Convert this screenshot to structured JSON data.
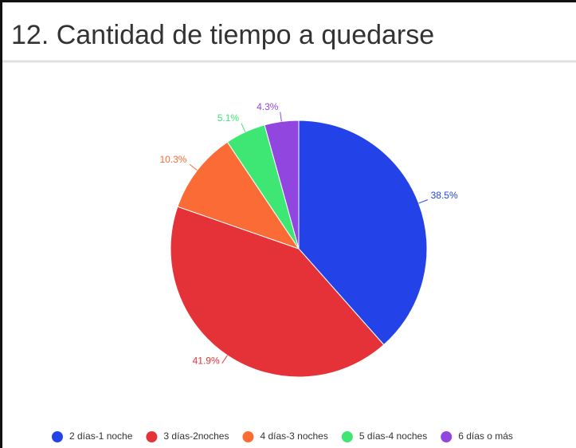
{
  "chart_data": {
    "type": "pie",
    "title": "12. Cantidad de tiempo a quedarse",
    "categories": [
      "2 días-1 noche",
      "3 días-2noches",
      "4 días-3 noches",
      "5 días-4 noches",
      "6 días o más"
    ],
    "values": [
      38.5,
      41.9,
      10.3,
      5.1,
      4.3
    ],
    "value_labels": [
      "38.5%",
      "41.9%",
      "10.3%",
      "5.1%",
      "4.3%"
    ],
    "colors": [
      "#2343e8",
      "#e53238",
      "#fb6b35",
      "#3ee673",
      "#9146e0"
    ],
    "legend": "bottom"
  }
}
